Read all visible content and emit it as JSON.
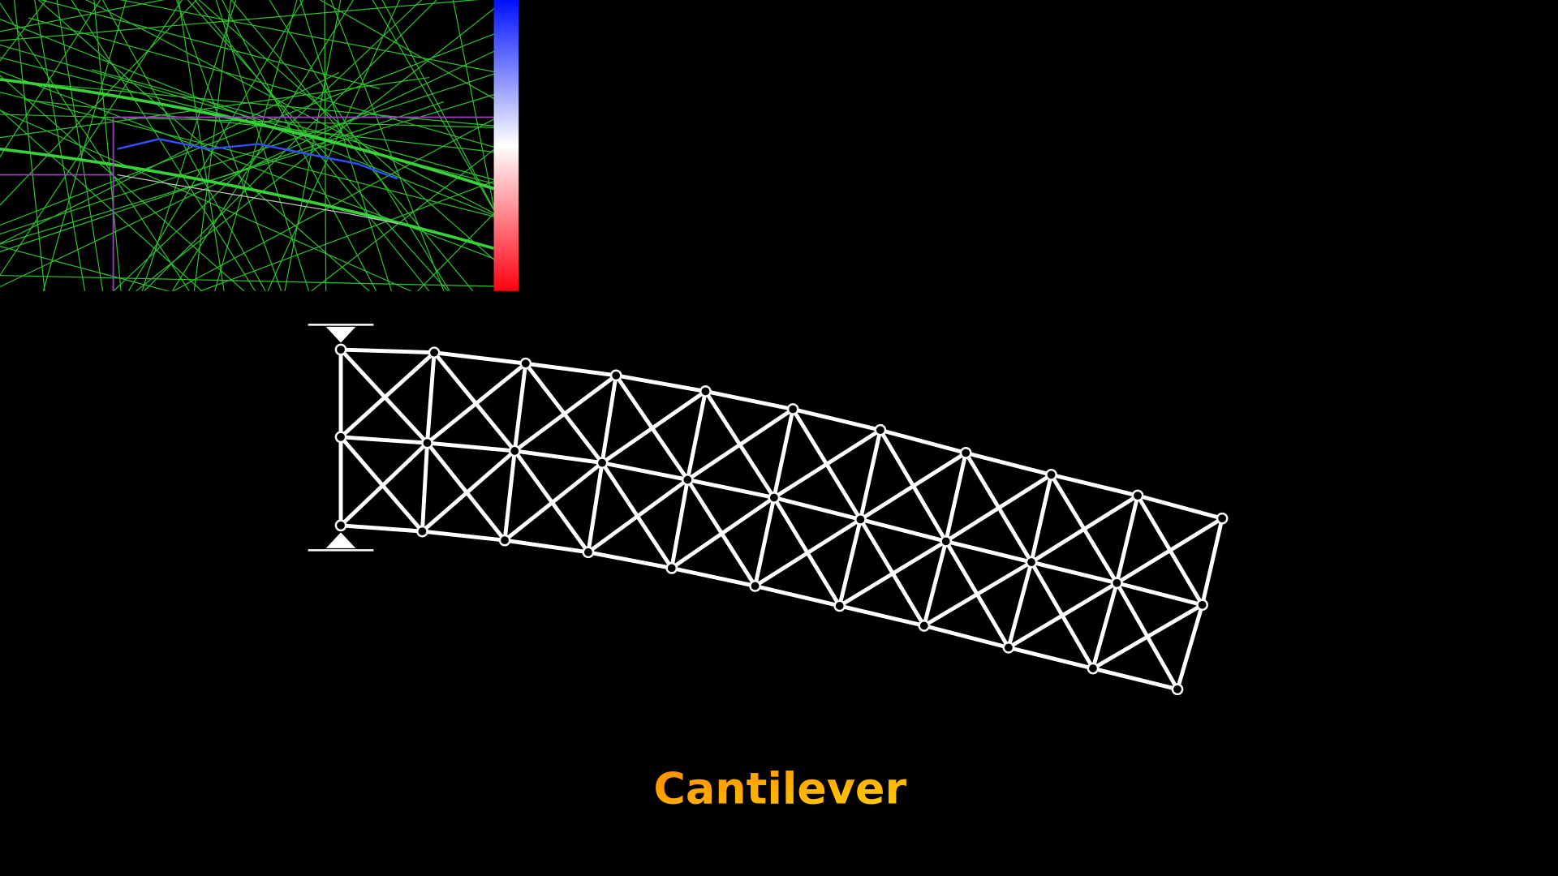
{
  "title": "Cantilever"
}
